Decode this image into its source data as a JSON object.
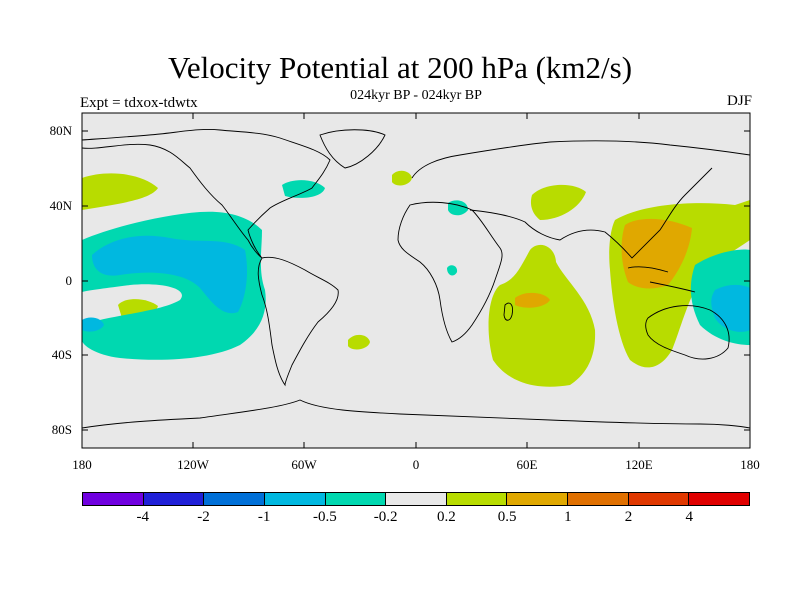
{
  "title": "Velocity Potential at 200 hPa (km2/s)",
  "subtitle": "024kyr BP - 024kyr BP",
  "left_label": "Expt = tdxox-tdwtx",
  "right_label": "DJF",
  "axes": {
    "lat_ticks": [
      "80N",
      "40N",
      "0",
      "40S",
      "80S"
    ],
    "lon_ticks": [
      "180",
      "120W",
      "60W",
      "0",
      "60E",
      "120E",
      "180"
    ],
    "lat_range": [
      -90,
      90
    ],
    "lon_range": [
      -180,
      180
    ]
  },
  "colors": {
    "ocean": "#e8e8e8",
    "neg_weak": "#00d8b0",
    "neg_mid": "#00b8e0",
    "pos_weak": "#b8dc00",
    "pos_mid": "#e0a800"
  },
  "legend": {
    "colors": [
      "#7000e0",
      "#2020d8",
      "#0070d8",
      "#00b8e0",
      "#00d8b0",
      "#e8e8e8",
      "#b8dc00",
      "#e0a800",
      "#e07000",
      "#e03800",
      "#e00000"
    ],
    "labels": [
      "-4",
      "-2",
      "-1",
      "-0.5",
      "-0.2",
      "0.2",
      "0.5",
      "1",
      "2",
      "4"
    ]
  }
}
